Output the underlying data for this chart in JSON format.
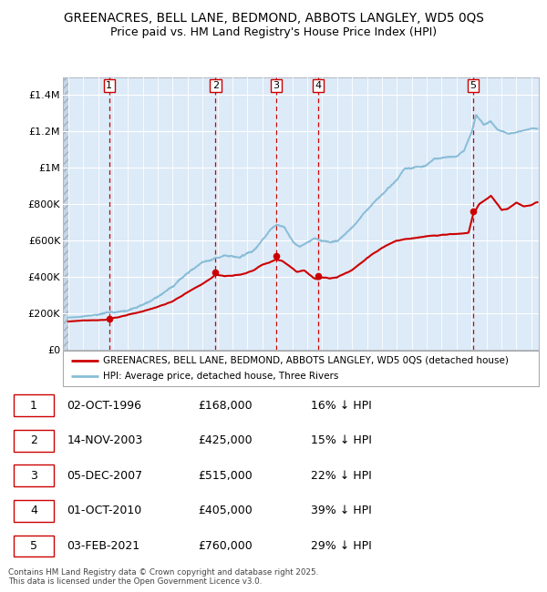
{
  "title1": "GREENACRES, BELL LANE, BEDMOND, ABBOTS LANGLEY, WD5 0QS",
  "title2": "Price paid vs. HM Land Registry's House Price Index (HPI)",
  "hpi_legend": "HPI: Average price, detached house, Three Rivers",
  "prop_legend": "GREENACRES, BELL LANE, BEDMOND, ABBOTS LANGLEY, WD5 0QS (detached house)",
  "ylim": [
    0,
    1500000
  ],
  "yticks": [
    0,
    200000,
    400000,
    600000,
    800000,
    1000000,
    1200000,
    1400000
  ],
  "ytick_labels": [
    "£0",
    "£200K",
    "£400K",
    "£600K",
    "£800K",
    "£1M",
    "£1.2M",
    "£1.4M"
  ],
  "hpi_color": "#89bdd8",
  "prop_color": "#cc0000",
  "vline_color": "#cc0000",
  "bg_color": "#ddeaf7",
  "grid_color": "#ffffff",
  "purchases": [
    {
      "num": 1,
      "date": "02-OCT-1996",
      "year": 1996.75,
      "price": 168000,
      "pct": "16%",
      "dir": "↓"
    },
    {
      "num": 2,
      "date": "14-NOV-2003",
      "year": 2003.87,
      "price": 425000,
      "pct": "15%",
      "dir": "↓"
    },
    {
      "num": 3,
      "date": "05-DEC-2007",
      "year": 2007.92,
      "price": 515000,
      "pct": "22%",
      "dir": "↓"
    },
    {
      "num": 4,
      "date": "01-OCT-2010",
      "year": 2010.75,
      "price": 405000,
      "pct": "39%",
      "dir": "↓"
    },
    {
      "num": 5,
      "date": "03-FEB-2021",
      "year": 2021.09,
      "price": 760000,
      "pct": "29%",
      "dir": "↓"
    }
  ],
  "footer": "Contains HM Land Registry data © Crown copyright and database right 2025.\nThis data is licensed under the Open Government Licence v3.0.",
  "hpi_keypoints": {
    "1994.0": 175000,
    "1995.0": 178000,
    "1996.0": 183000,
    "1997.0": 200000,
    "1998.0": 215000,
    "1999.0": 240000,
    "2000.0": 280000,
    "2001.0": 330000,
    "2002.0": 410000,
    "2003.0": 470000,
    "2003.87": 490000,
    "2004.5": 505000,
    "2005.5": 495000,
    "2006.5": 540000,
    "2007.0": 590000,
    "2007.5": 640000,
    "2008.0": 670000,
    "2008.5": 650000,
    "2009.0": 580000,
    "2009.5": 540000,
    "2010.0": 560000,
    "2010.5": 580000,
    "2011.0": 565000,
    "2011.5": 555000,
    "2012.0": 560000,
    "2013.0": 620000,
    "2014.0": 720000,
    "2015.0": 800000,
    "2016.0": 880000,
    "2016.5": 940000,
    "2017.0": 950000,
    "2017.5": 960000,
    "2018.0": 970000,
    "2018.5": 1000000,
    "2019.0": 1010000,
    "2019.5": 1020000,
    "2020.0": 1020000,
    "2020.5": 1050000,
    "2021.0": 1150000,
    "2021.3": 1250000,
    "2021.8": 1200000,
    "2022.3": 1220000,
    "2022.8": 1170000,
    "2023.5": 1150000,
    "2024.0": 1170000,
    "2024.5": 1190000,
    "2025.0": 1210000,
    "2025.3": 1215000
  },
  "prop_keypoints": {
    "1994.0": 153000,
    "1995.0": 158000,
    "1996.5": 161000,
    "1996.75": 168000,
    "1997.5": 182000,
    "1999.0": 215000,
    "2001.0": 275000,
    "2002.5": 350000,
    "2003.5": 400000,
    "2003.87": 425000,
    "2004.5": 418000,
    "2005.5": 430000,
    "2006.5": 460000,
    "2007.0": 488000,
    "2007.92": 515000,
    "2008.3": 510000,
    "2008.8": 480000,
    "2009.3": 450000,
    "2009.8": 455000,
    "2010.5": 408000,
    "2010.75": 405000,
    "2011.0": 415000,
    "2011.5": 408000,
    "2012.0": 415000,
    "2013.0": 455000,
    "2014.0": 520000,
    "2015.0": 575000,
    "2016.0": 615000,
    "2017.0": 630000,
    "2018.0": 640000,
    "2019.0": 648000,
    "2020.0": 655000,
    "2020.8": 665000,
    "2021.09": 760000,
    "2021.5": 820000,
    "2022.0": 850000,
    "2022.3": 870000,
    "2022.8": 820000,
    "2023.0": 795000,
    "2023.5": 805000,
    "2024.0": 830000,
    "2024.5": 800000,
    "2025.0": 800000,
    "2025.3": 810000
  }
}
